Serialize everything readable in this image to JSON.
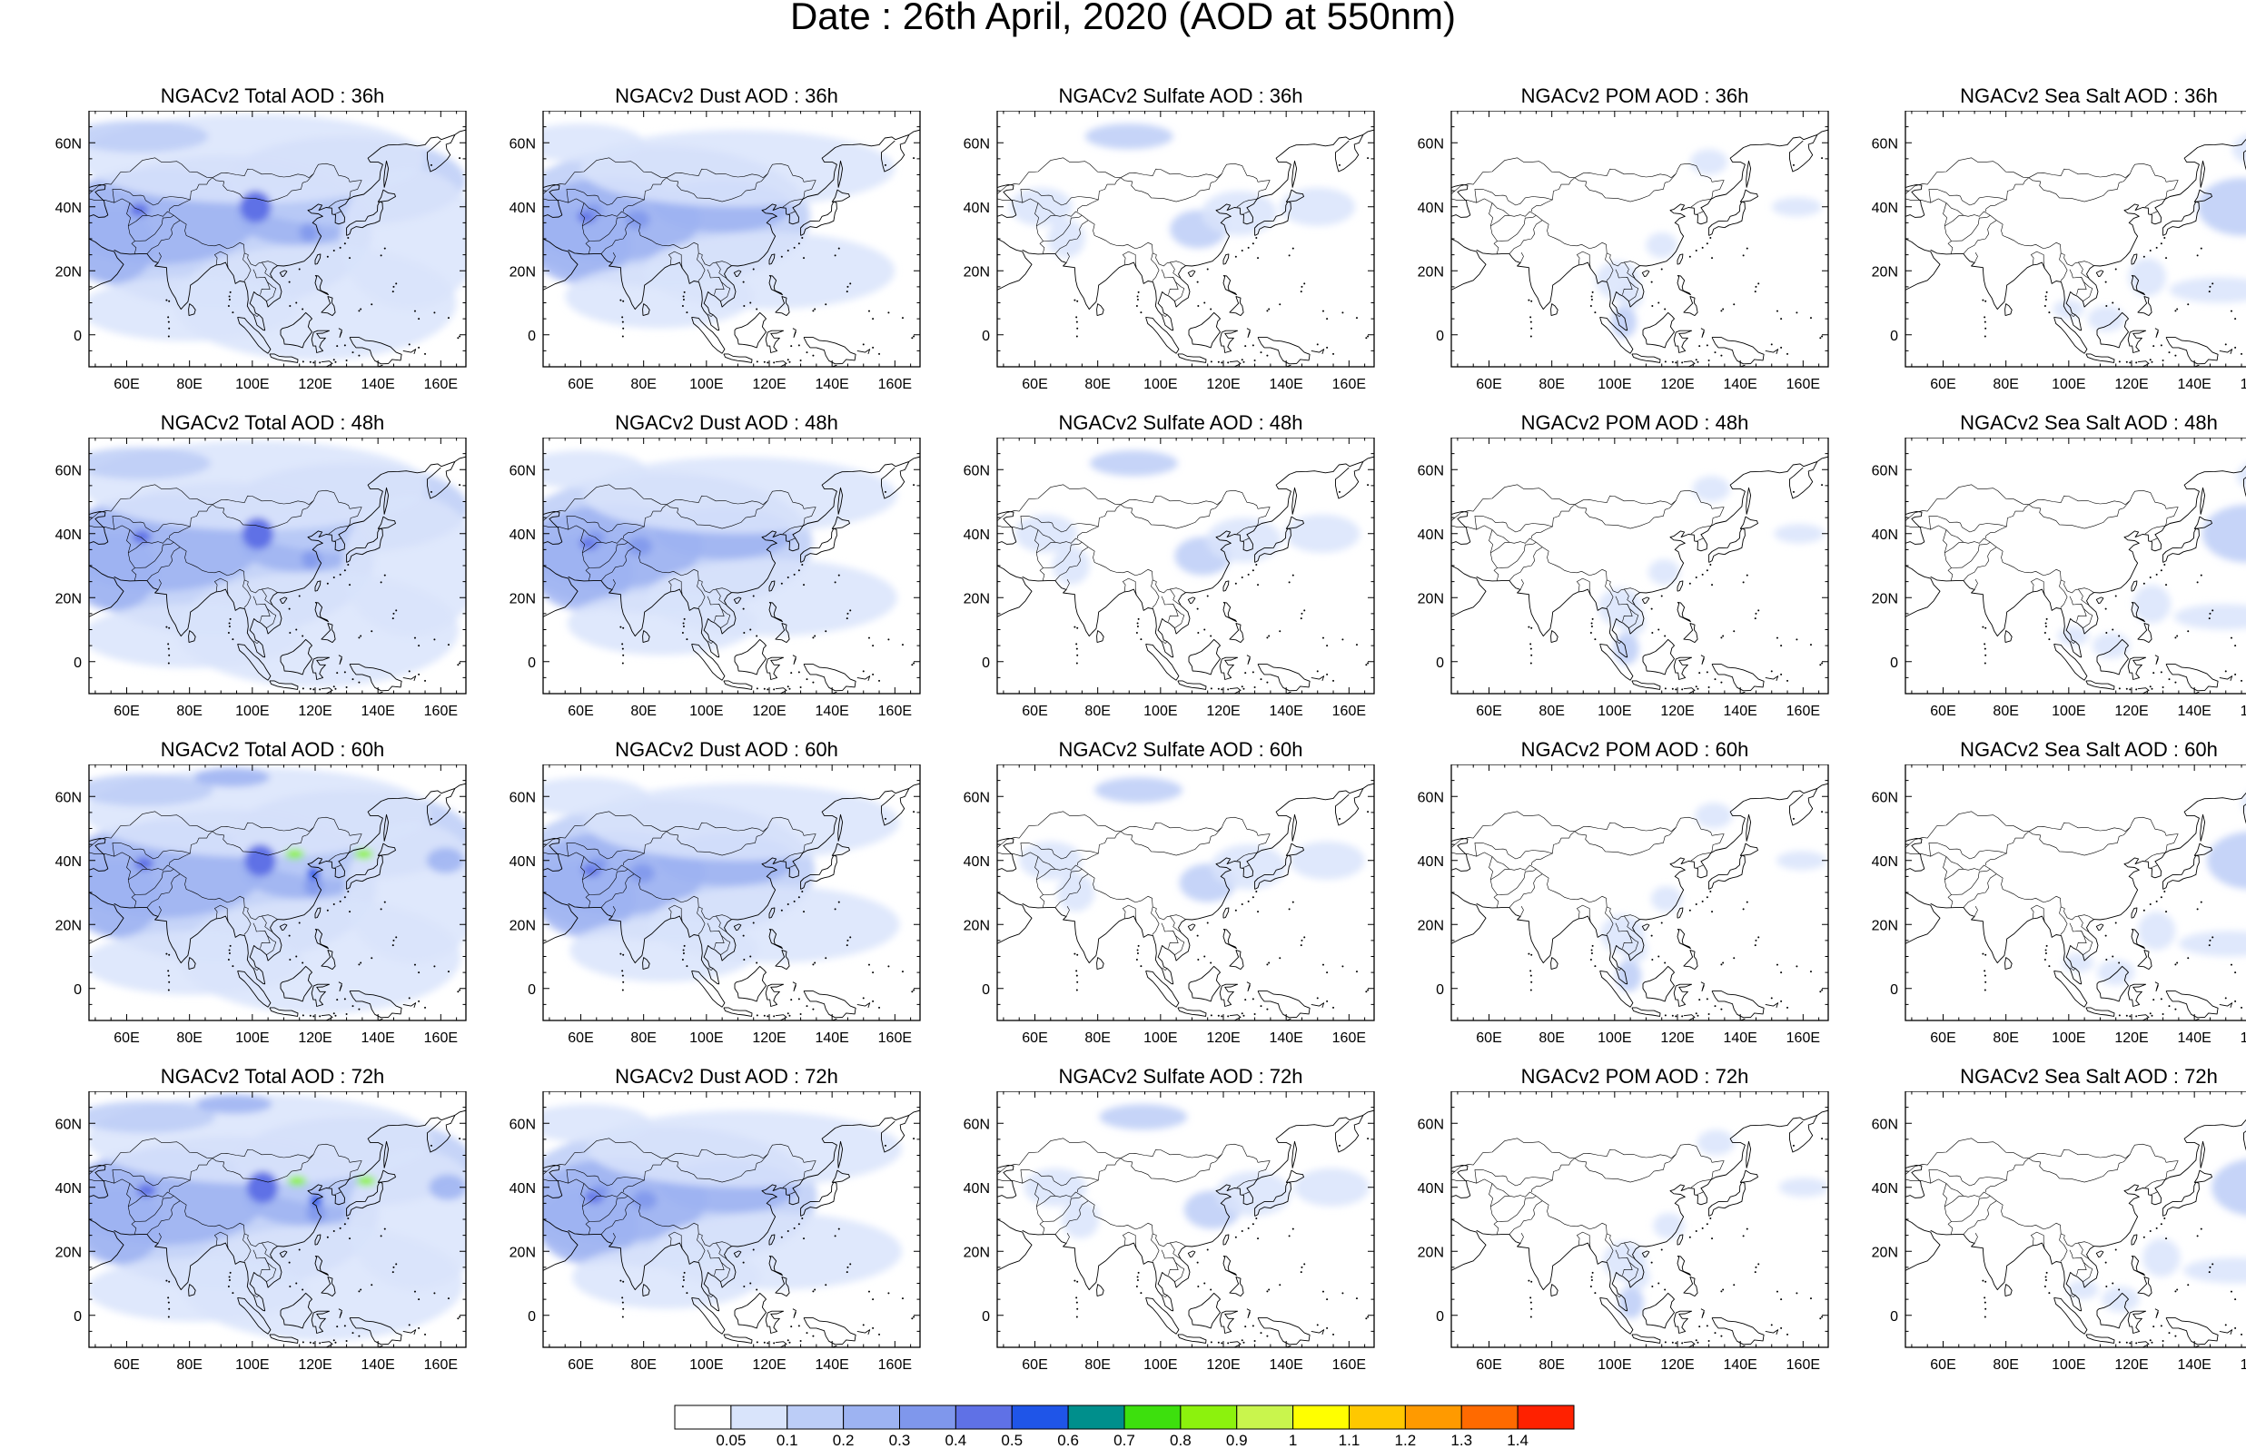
{
  "title": "Date : 26th April, 2020 (AOD at 550nm)",
  "map": {
    "lon_range": [
      48,
      168
    ],
    "lat_range": [
      -10,
      70
    ],
    "lon_ticks": [
      "60E",
      "80E",
      "100E",
      "120E",
      "140E",
      "160E"
    ],
    "lon_tick_values": [
      60,
      80,
      100,
      120,
      140,
      160
    ],
    "lat_ticks": [
      "0",
      "20N",
      "40N",
      "60N"
    ],
    "lat_tick_values": [
      0,
      20,
      40,
      60
    ]
  },
  "rows": [
    {
      "lead": "36h",
      "panels": [
        {
          "title": "NGACv2 Total AOD : 36h",
          "species": "total",
          "level": "moderate"
        },
        {
          "title": "NGACv2 Dust AOD : 36h",
          "species": "dust",
          "level": "moderate"
        },
        {
          "title": "NGACv2 Sulfate AOD : 36h",
          "species": "sulfate",
          "level": "low"
        },
        {
          "title": "NGACv2 POM AOD : 36h",
          "species": "pom",
          "level": "low"
        },
        {
          "title": "NGACv2 Sea Salt AOD : 36h",
          "species": "seasalt",
          "level": "low"
        }
      ]
    },
    {
      "lead": "48h",
      "panels": [
        {
          "title": "NGACv2 Total AOD : 48h",
          "species": "total",
          "level": "moderate"
        },
        {
          "title": "NGACv2 Dust AOD : 48h",
          "species": "dust",
          "level": "moderate"
        },
        {
          "title": "NGACv2 Sulfate AOD : 48h",
          "species": "sulfate",
          "level": "low"
        },
        {
          "title": "NGACv2 POM AOD : 48h",
          "species": "pom",
          "level": "low"
        },
        {
          "title": "NGACv2 Sea Salt AOD : 48h",
          "species": "seasalt",
          "level": "low"
        }
      ]
    },
    {
      "lead": "60h",
      "panels": [
        {
          "title": "NGACv2 Total AOD : 60h",
          "species": "total",
          "level": "high"
        },
        {
          "title": "NGACv2 Dust AOD : 60h",
          "species": "dust",
          "level": "moderate"
        },
        {
          "title": "NGACv2 Sulfate AOD : 60h",
          "species": "sulfate",
          "level": "low"
        },
        {
          "title": "NGACv2 POM AOD : 60h",
          "species": "pom",
          "level": "low"
        },
        {
          "title": "NGACv2 Sea Salt AOD : 60h",
          "species": "seasalt",
          "level": "low"
        }
      ]
    },
    {
      "lead": "72h",
      "panels": [
        {
          "title": "NGACv2 Total AOD : 72h",
          "species": "total",
          "level": "high"
        },
        {
          "title": "NGACv2 Dust AOD : 72h",
          "species": "dust",
          "level": "moderate"
        },
        {
          "title": "NGACv2 Sulfate AOD : 72h",
          "species": "sulfate",
          "level": "low"
        },
        {
          "title": "NGACv2 POM AOD : 72h",
          "species": "pom",
          "level": "low"
        },
        {
          "title": "NGACv2 Sea Salt  AOD : 72h",
          "species": "seasalt",
          "level": "low"
        }
      ]
    }
  ],
  "colorbar": {
    "labels": [
      "0.05",
      "0.1",
      "0.2",
      "0.3",
      "0.4",
      "0.5",
      "0.6",
      "0.7",
      "0.8",
      "0.9",
      "1",
      "1.1",
      "1.2",
      "1.3",
      "1.4"
    ],
    "colors": [
      "#ffffff",
      "#d9e4fb",
      "#bccdf7",
      "#9db3f2",
      "#7f97ec",
      "#5f71e6",
      "#1f55e8",
      "#008f8c",
      "#3de00d",
      "#8cf20d",
      "#c9f54d",
      "#ffff00",
      "#ffc800",
      "#ff9a00",
      "#ff6a00",
      "#ff2100"
    ]
  }
}
